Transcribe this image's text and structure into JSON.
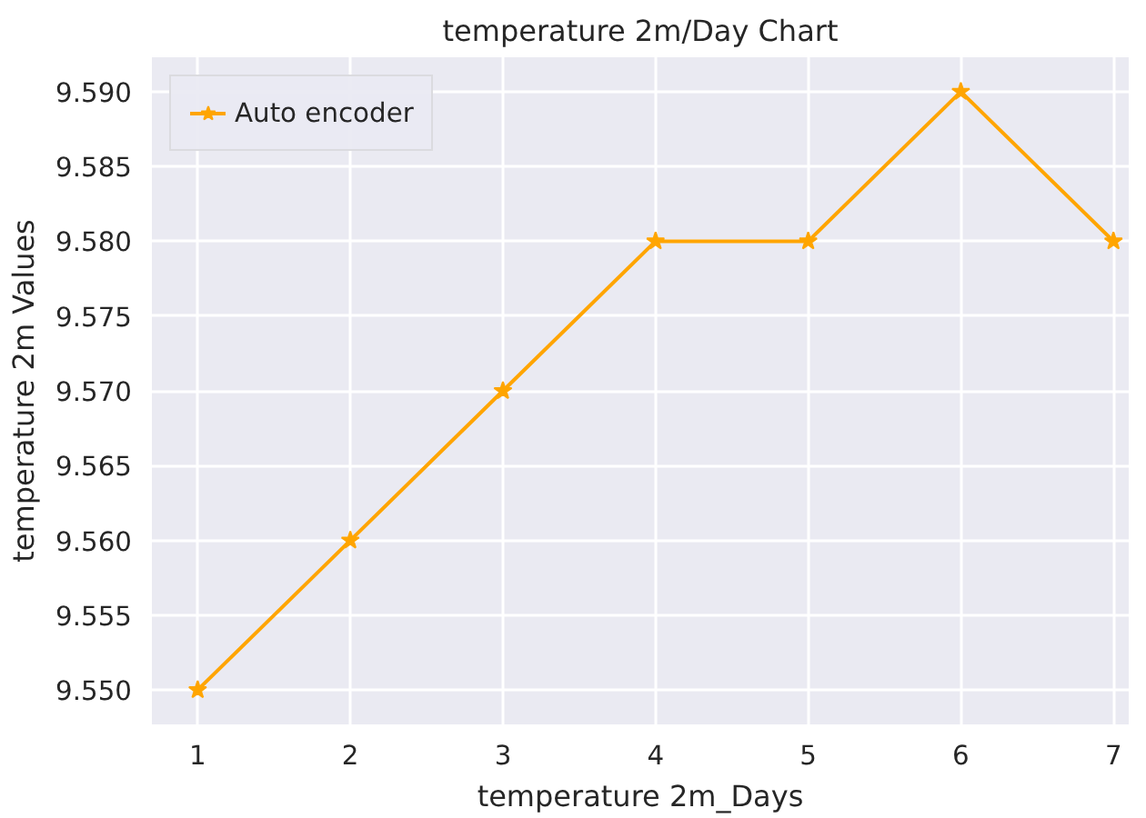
{
  "chart_data": {
    "type": "line",
    "title": "temperature 2m/Day Chart",
    "xlabel": "temperature 2m_Days",
    "ylabel": "temperature 2m Values",
    "x": [
      1,
      2,
      3,
      4,
      5,
      6,
      7
    ],
    "series": [
      {
        "name": "Auto encoder",
        "color": "#ffa500",
        "values": [
          9.55,
          9.56,
          9.57,
          9.58,
          9.58,
          9.59,
          9.58
        ]
      }
    ],
    "xlim": [
      0.7,
      7.1
    ],
    "ylim": [
      9.5477,
      9.5923
    ],
    "xticks": [
      1,
      2,
      3,
      4,
      5,
      6,
      7
    ],
    "yticks": [
      {
        "value": 9.55,
        "label": "9.550"
      },
      {
        "value": 9.555,
        "label": "9.555"
      },
      {
        "value": 9.56,
        "label": "9.560"
      },
      {
        "value": 9.565,
        "label": "9.565"
      },
      {
        "value": 9.57,
        "label": "9.570"
      },
      {
        "value": 9.575,
        "label": "9.575"
      },
      {
        "value": 9.58,
        "label": "9.580"
      },
      {
        "value": 9.585,
        "label": "9.585"
      },
      {
        "value": 9.59,
        "label": "9.590"
      }
    ],
    "grid": true,
    "legend": "top left",
    "marker": "star",
    "line_style": "solid"
  }
}
